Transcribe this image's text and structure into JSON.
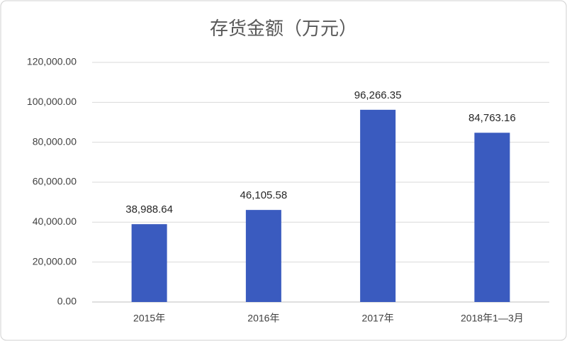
{
  "chart_data": {
    "type": "bar",
    "title": "存货金额（万元）",
    "categories": [
      "2015年",
      "2016年",
      "2017年",
      "2018年1—3月"
    ],
    "values": [
      38988.64,
      46105.58,
      96266.35,
      84763.16
    ],
    "value_labels": [
      "38,988.64",
      "46,105.58",
      "96,266.35",
      "84,763.16"
    ],
    "color": "#3a5bbf",
    "ylim": [
      0,
      120000
    ],
    "yticks": [
      {
        "value": 0,
        "label": "0.00"
      },
      {
        "value": 20000,
        "label": "20,000.00"
      },
      {
        "value": 40000,
        "label": "40,000.00"
      },
      {
        "value": 60000,
        "label": "60,000.00"
      },
      {
        "value": 80000,
        "label": "80,000.00"
      },
      {
        "value": 100000,
        "label": "100,000.00"
      },
      {
        "value": 120000,
        "label": "120,000.00"
      }
    ],
    "grid": true
  }
}
